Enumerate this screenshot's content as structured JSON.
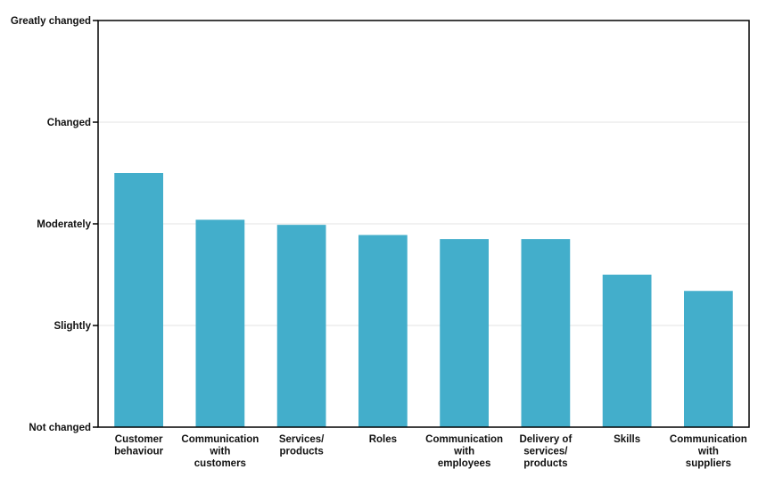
{
  "chart_data": {
    "type": "bar",
    "title": "",
    "xlabel": "",
    "ylabel": "",
    "ylim": [
      0,
      4
    ],
    "y_ticks": [
      {
        "value": 0,
        "label": "Not changed"
      },
      {
        "value": 1,
        "label": "Slightly"
      },
      {
        "value": 2,
        "label": "Moderately"
      },
      {
        "value": 3,
        "label": "Changed"
      },
      {
        "value": 4,
        "label": "Greatly changed"
      }
    ],
    "grid": true,
    "bar_color": "#43AECB",
    "categories": [
      [
        "Customer",
        "behaviour"
      ],
      [
        "Communication",
        "with",
        "customers"
      ],
      [
        "Services/",
        "products"
      ],
      [
        "Roles"
      ],
      [
        "Communication",
        "with",
        "employees"
      ],
      [
        "Delivery of",
        "services/",
        "products"
      ],
      [
        "Skills"
      ],
      [
        "Communication",
        "with",
        "suppliers"
      ]
    ],
    "values": [
      2.5,
      2.04,
      1.99,
      1.89,
      1.85,
      1.85,
      1.5,
      1.34
    ]
  }
}
